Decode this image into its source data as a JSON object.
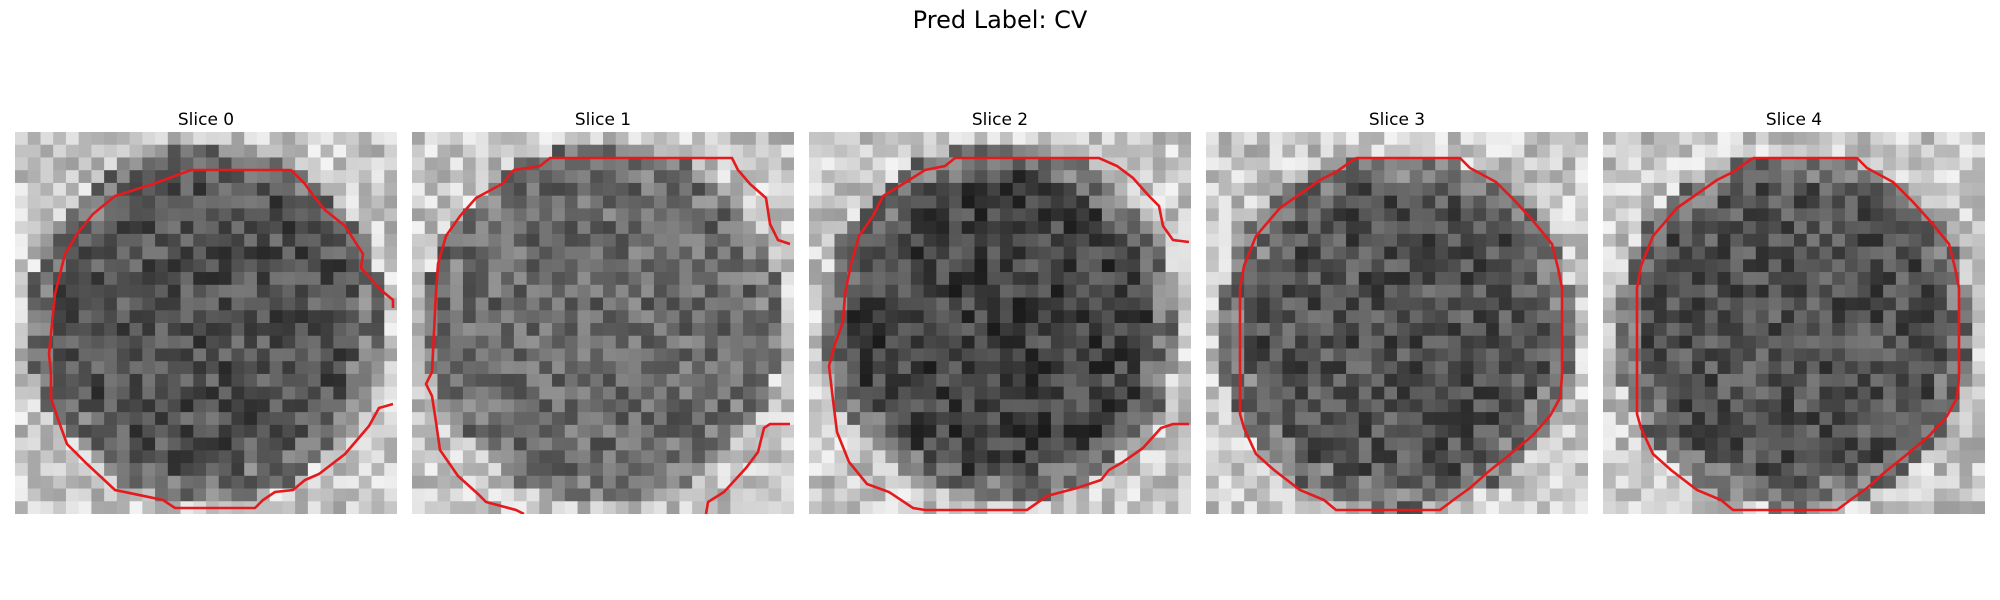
{
  "figure": {
    "title": "Pred Label: CV",
    "contour_color": "#e41a1c",
    "panels": [
      {
        "label": "Slice 0"
      },
      {
        "label": "Slice 1"
      },
      {
        "label": "Slice 2"
      },
      {
        "label": "Slice 3"
      },
      {
        "label": "Slice 4"
      }
    ]
  }
}
